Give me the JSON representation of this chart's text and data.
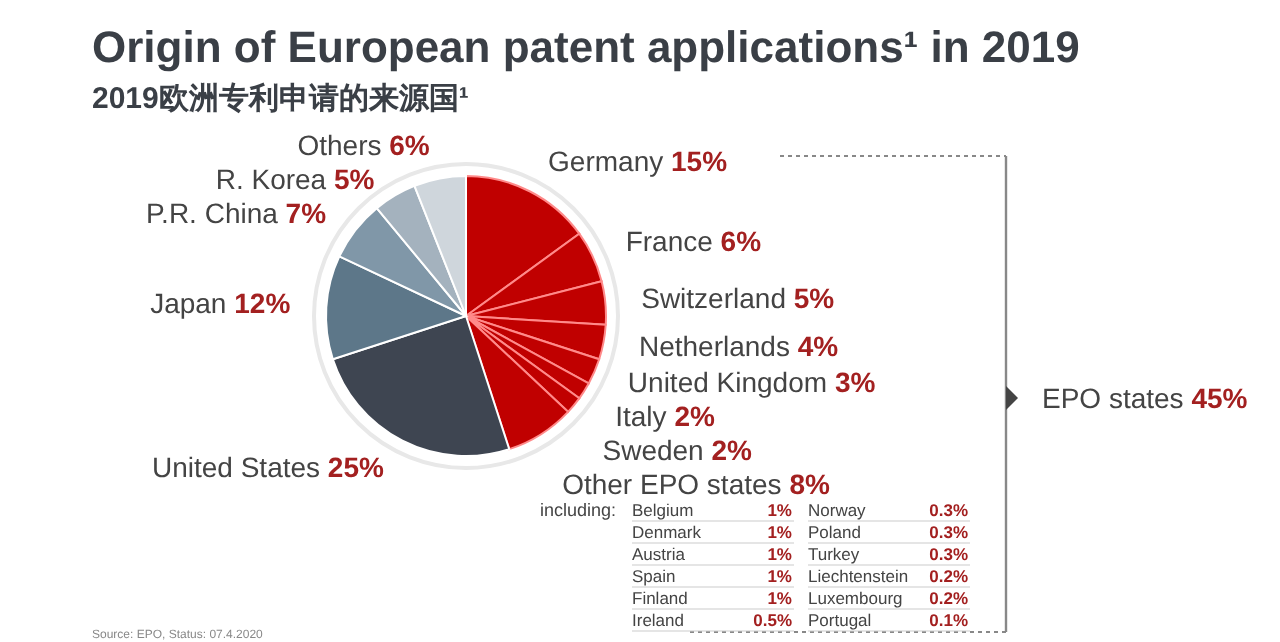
{
  "chart_data": {
    "type": "pie",
    "title": "Origin of European patent applications¹ in 2019",
    "subtitle": "2019欧洲专利申请的来源国¹",
    "categories": [
      "Germany",
      "France",
      "Switzerland",
      "Netherlands",
      "United Kingdom",
      "Italy",
      "Sweden",
      "Other EPO states",
      "United States",
      "Japan",
      "P.R. China",
      "R. Korea",
      "Others"
    ],
    "values": [
      15,
      6,
      5,
      4,
      3,
      2,
      2,
      8,
      25,
      12,
      7,
      5,
      6
    ],
    "value_labels": [
      "15%",
      "6%",
      "5%",
      "4%",
      "3%",
      "2%",
      "2%",
      "8%",
      "25%",
      "12%",
      "7%",
      "5%",
      "6%"
    ],
    "colors": [
      "#c00000",
      "#c00000",
      "#c00000",
      "#c00000",
      "#c00000",
      "#c00000",
      "#c00000",
      "#c00000",
      "#3e4551",
      "#5d7789",
      "#8097a8",
      "#a4b2be",
      "#cfd6dc"
    ],
    "annotations": [
      "EPO states 45%",
      "including:",
      "Belgium 1%",
      "Denmark 1%",
      "Austria 1%",
      "Spain 1%",
      "Finland 1%",
      "Ireland 0.5%",
      "Norway 0.3%",
      "Poland 0.3%",
      "Turkey 0.3%",
      "Liechtenstein 0.2%",
      "Luxembourg 0.2%",
      "Portugal 0.1%",
      "Source: EPO, Status: 07.4.2020"
    ]
  }
}
